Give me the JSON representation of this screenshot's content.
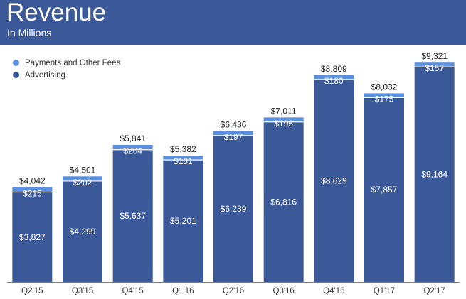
{
  "header": {
    "title": "Revenue",
    "subtitle": "In Millions",
    "color": "#3b5998"
  },
  "chart_data": {
    "type": "bar",
    "stacked": true,
    "title": "Revenue",
    "subtitle": "In Millions",
    "categories": [
      "Q2'15",
      "Q3'15",
      "Q4'15",
      "Q1'16",
      "Q2'16",
      "Q3'16",
      "Q4'16",
      "Q1'17",
      "Q2'17"
    ],
    "series": [
      {
        "name": "Advertising",
        "color": "#3b5998",
        "values": [
          3827,
          4299,
          5637,
          5201,
          6239,
          6816,
          8629,
          7857,
          9164
        ],
        "labels": [
          "$3,827",
          "$4,299",
          "$5,637",
          "$5,201",
          "$6,239",
          "$6,816",
          "$8,629",
          "$7,857",
          "$9,164"
        ]
      },
      {
        "name": "Payments and Other Fees",
        "color": "#5b8fe0",
        "values": [
          215,
          202,
          204,
          181,
          197,
          195,
          180,
          175,
          157
        ],
        "labels": [
          "$215",
          "$202",
          "$204",
          "$181",
          "$197",
          "$195",
          "$180",
          "$175",
          "$157"
        ]
      }
    ],
    "totals": [
      4042,
      4501,
      5841,
      5382,
      6436,
      7011,
      8809,
      8032,
      9321
    ],
    "total_labels": [
      "$4,042",
      "$4,501",
      "$5,841",
      "$5,382",
      "$6,436",
      "$7,011",
      "$8,809",
      "$8,032",
      "$9,321"
    ],
    "ylim": [
      0,
      9500
    ],
    "xlabel": "",
    "ylabel": "",
    "grid": false,
    "legend_position": "top-left",
    "legend": [
      "Payments and Other Fees",
      "Advertising"
    ]
  }
}
